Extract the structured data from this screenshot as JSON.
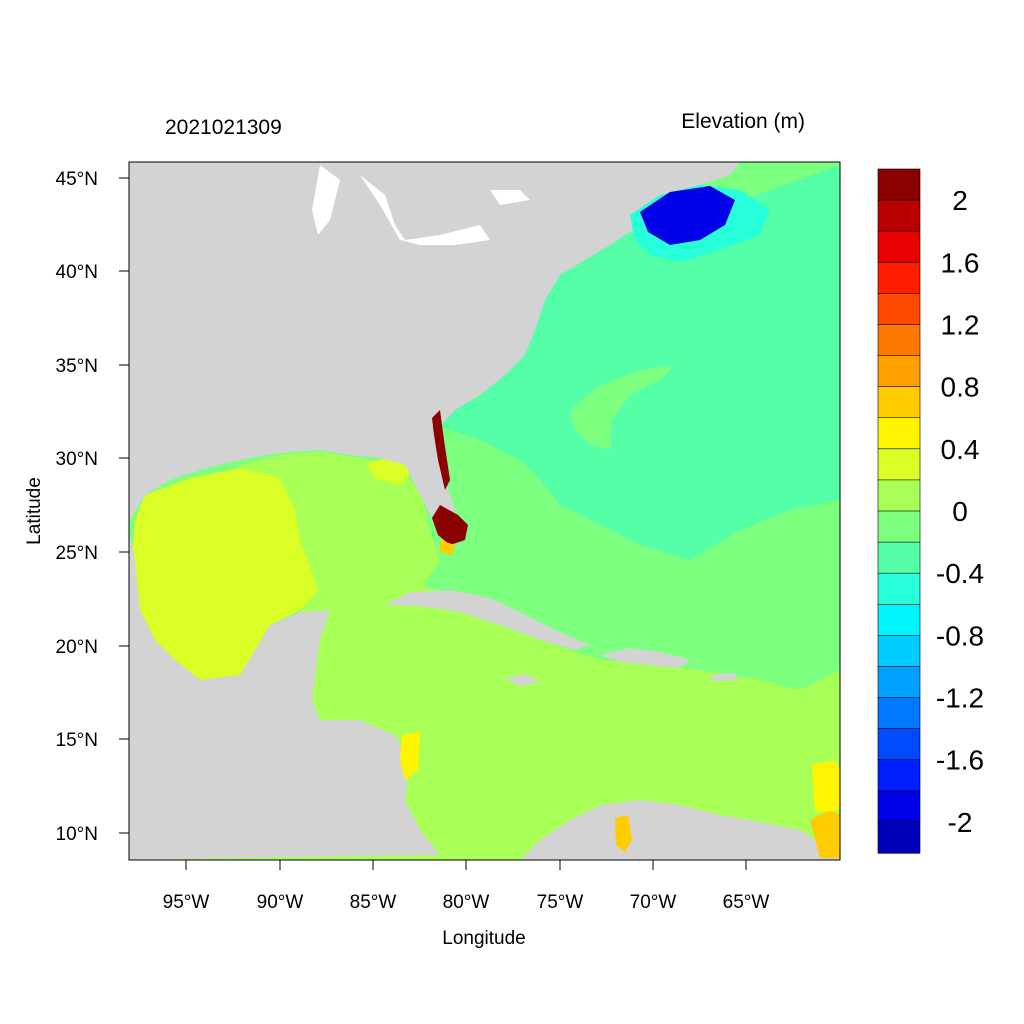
{
  "timestamp": "2021021309",
  "title": "Elevation (m)",
  "x_axis_label": "Longitude",
  "y_axis_label": "Latitude",
  "lon_ticks": [
    "95°W",
    "90°W",
    "85°W",
    "80°W",
    "75°W",
    "70°W",
    "65°W"
  ],
  "lat_ticks": [
    "45°N",
    "40°N",
    "35°N",
    "30°N",
    "25°N",
    "20°N",
    "15°N",
    "10°N"
  ],
  "colorbar": {
    "labels": [
      "2",
      "1.6",
      "1.2",
      "0.8",
      "0.4",
      "0",
      "-0.4",
      "-0.8",
      "-1.2",
      "-1.6",
      "-2"
    ],
    "colors": [
      "#8B0000",
      "#B90000",
      "#E60000",
      "#FF1F00",
      "#FF4A00",
      "#FF7800",
      "#FFA000",
      "#FFCC00",
      "#FFF500",
      "#D9FF26",
      "#A8FF55",
      "#7DFF80",
      "#55FFA8",
      "#26FFD9",
      "#00F5FF",
      "#00CCFF",
      "#00A0FF",
      "#0078FF",
      "#004AFF",
      "#001FFF",
      "#0000E6",
      "#0000B9"
    ]
  },
  "colors": {
    "land": "#D3D3D3",
    "lakes": "#FFFFFF",
    "gulf_of_mexico_west": "#D9FF26",
    "gulf_east_and_caribbean": "#A8FF55",
    "western_atlantic": "#7DFF80",
    "eastern_seaboard": "#55FFA8",
    "gulf_of_maine": "#0000E6",
    "south_florida": "#8B0000"
  }
}
